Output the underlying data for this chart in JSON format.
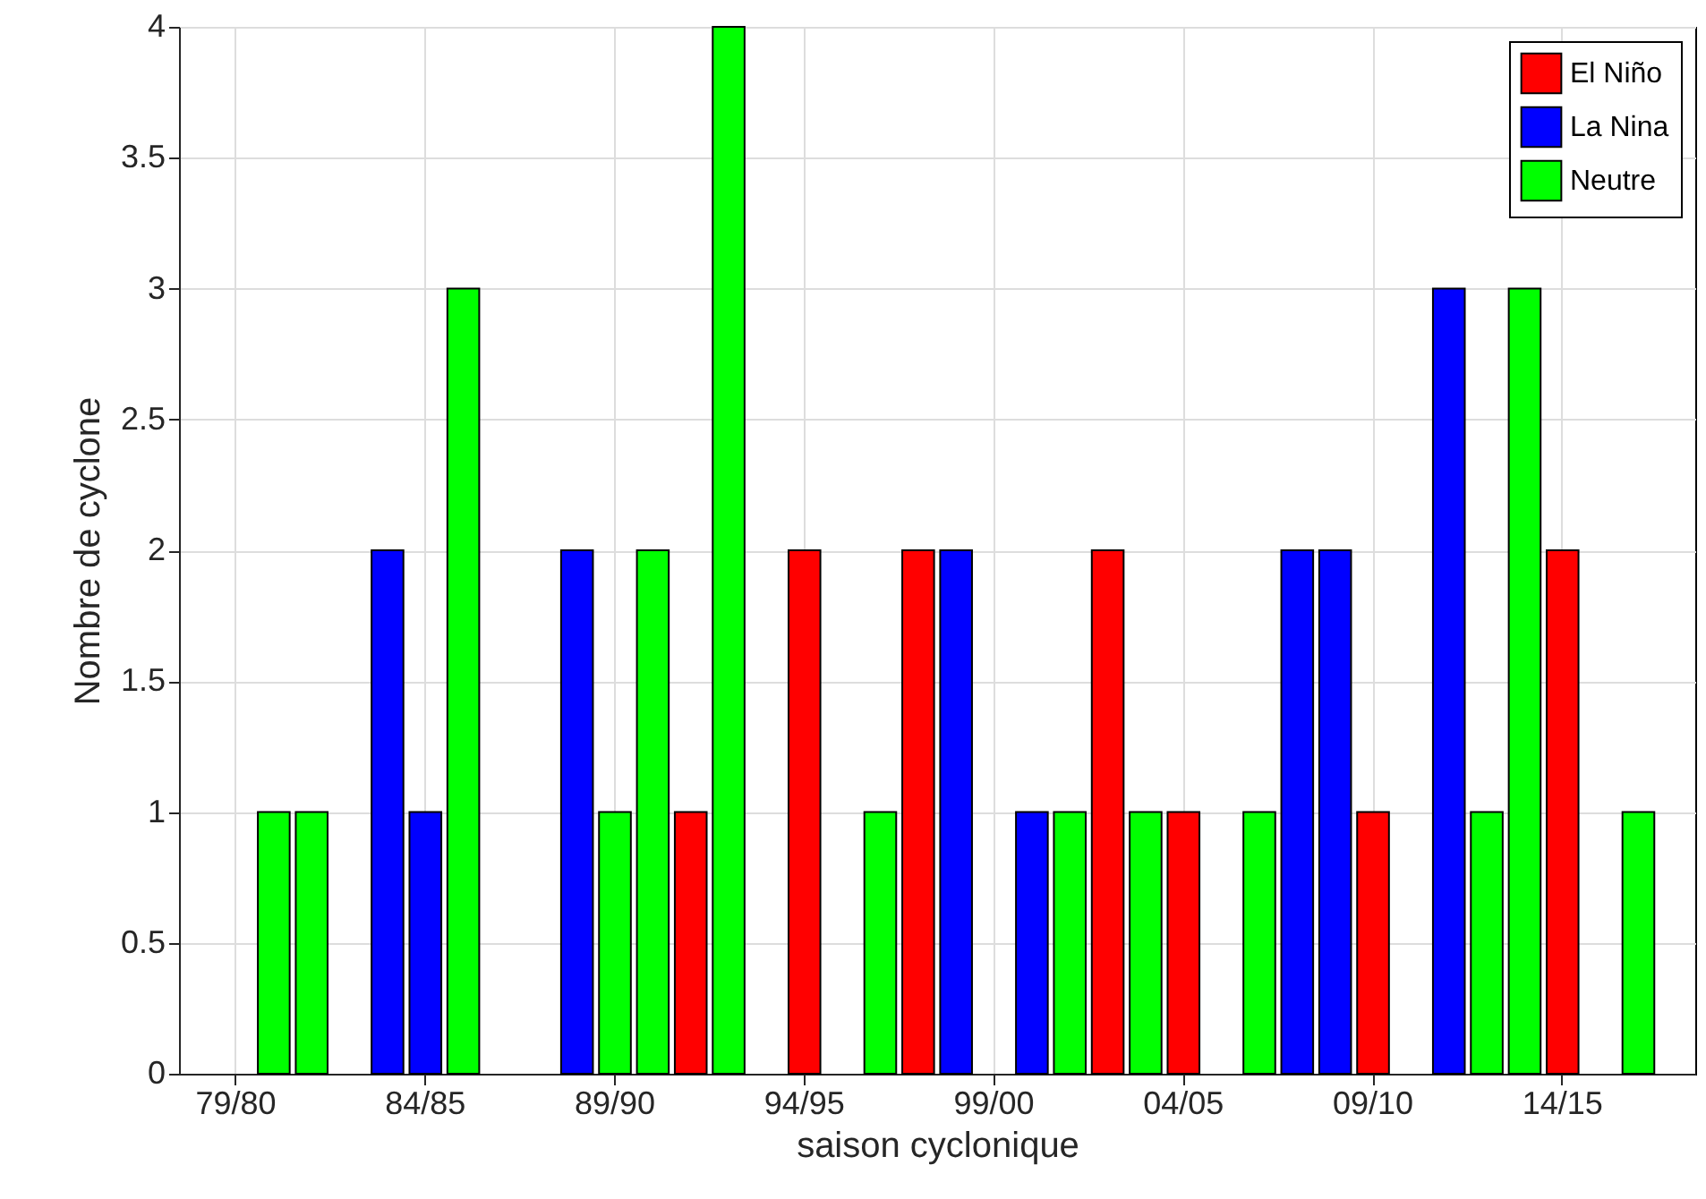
{
  "chart_data": {
    "type": "bar",
    "xlabel": "saison cyclonique",
    "ylabel": "Nombre de cyclone",
    "categories": [
      null,
      "79/80",
      null,
      null,
      null,
      null,
      "84/85",
      null,
      null,
      null,
      null,
      "89/90",
      null,
      null,
      null,
      null,
      "94/95",
      null,
      null,
      null,
      null,
      "99/00",
      null,
      null,
      null,
      null,
      "04/05",
      null,
      null,
      null,
      null,
      "09/10",
      null,
      null,
      null,
      null,
      "14/15",
      null,
      null,
      null
    ],
    "series": [
      {
        "name": "El Niño",
        "color": "#ff0000",
        "values": [
          null,
          null,
          null,
          null,
          null,
          null,
          null,
          null,
          null,
          null,
          null,
          null,
          null,
          1,
          null,
          null,
          2,
          null,
          null,
          2,
          null,
          null,
          null,
          null,
          2,
          null,
          1,
          null,
          null,
          null,
          null,
          1,
          null,
          null,
          null,
          null,
          2,
          null,
          null,
          null
        ]
      },
      {
        "name": "La Nina",
        "color": "#0000ff",
        "values": [
          null,
          null,
          null,
          null,
          null,
          2,
          1,
          null,
          null,
          null,
          2,
          null,
          null,
          null,
          null,
          null,
          null,
          null,
          null,
          null,
          2,
          null,
          1,
          null,
          null,
          null,
          null,
          null,
          null,
          2,
          2,
          null,
          null,
          3,
          null,
          null,
          null,
          null,
          null,
          null
        ]
      },
      {
        "name": "Neutre",
        "color": "#00ff00",
        "values": [
          null,
          null,
          1,
          1,
          null,
          null,
          null,
          3,
          null,
          null,
          null,
          1,
          2,
          null,
          4,
          null,
          null,
          null,
          1,
          null,
          null,
          null,
          null,
          1,
          null,
          1,
          null,
          null,
          1,
          null,
          null,
          null,
          null,
          null,
          1,
          3,
          null,
          null,
          1,
          null
        ]
      }
    ],
    "ylim": [
      0,
      4
    ],
    "yticks": [
      0,
      0.5,
      1,
      1.5,
      2,
      2.5,
      3,
      3.5,
      4
    ],
    "grid": true,
    "legend": "top right"
  }
}
